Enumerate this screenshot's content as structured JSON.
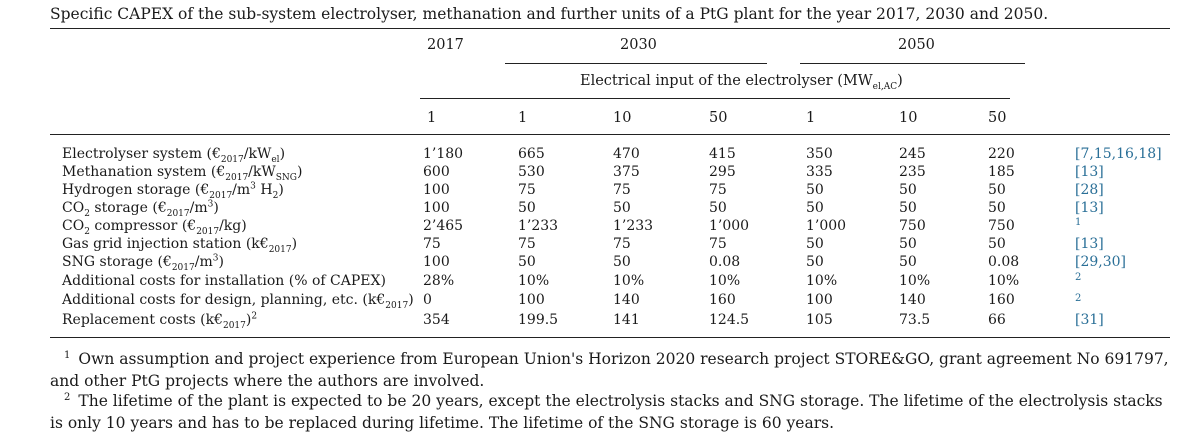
{
  "caption": "Specific CAPEX of the sub-system electrolyser, methanation and further units of a PtG plant for the year 2017, 2030 and 2050.",
  "header": {
    "years": [
      "2017",
      "2030",
      "2050"
    ],
    "span_label_pre": "Electrical input of the electrolyser (MW",
    "span_label_sub": "el,AC",
    "span_label_post": ")",
    "sizes": [
      "1",
      "1",
      "10",
      "50",
      "1",
      "10",
      "50"
    ]
  },
  "rows": [
    {
      "label_pre": "Electrolyser system (€",
      "label_sub": "2017",
      "label_mid": "/kW",
      "label_sub2": "el",
      "label_post": ")",
      "values": [
        "1’180",
        "665",
        "470",
        "415",
        "350",
        "245",
        "220"
      ],
      "ref": "[7,15,16,18]"
    },
    {
      "label_pre": "Methanation system (€",
      "label_sub": "2017",
      "label_mid": "/kW",
      "label_sub2": "SNG",
      "label_post": ")",
      "values": [
        "600",
        "530",
        "375",
        "295",
        "335",
        "235",
        "185"
      ],
      "ref": "[13]"
    },
    {
      "label_pre": "Hydrogen storage (€",
      "label_sub": "2017",
      "label_mid": "/m",
      "label_sup": "3",
      "label_post": " H",
      "label_sub3": "2",
      "label_end": ")",
      "values": [
        "100",
        "75",
        "75",
        "75",
        "50",
        "50",
        "50"
      ],
      "ref": "[28]"
    },
    {
      "label_pre": "CO",
      "label_sub": "2",
      "label_mid": " storage (€",
      "label_sub2": "2017",
      "label_post": "/m",
      "label_sup": "3",
      "label_end": ")",
      "values": [
        "100",
        "50",
        "50",
        "50",
        "50",
        "50",
        "50"
      ],
      "ref": "[13]"
    },
    {
      "label_pre": "CO",
      "label_sub": "2",
      "label_mid": " compressor (€",
      "label_sub2": "2017",
      "label_post": "/kg)",
      "values": [
        "2’465",
        "1’233",
        "1’233",
        "1’000",
        "1’000",
        "750",
        "750"
      ],
      "ref_sup": "1"
    },
    {
      "label_pre": "Gas grid injection station (k€",
      "label_sub": "2017",
      "label_post": ")",
      "values": [
        "75",
        "75",
        "75",
        "75",
        "50",
        "50",
        "50"
      ],
      "ref": "[13]"
    },
    {
      "label_pre": "SNG storage (€",
      "label_sub": "2017",
      "label_mid": "/m",
      "label_sup": "3",
      "label_post": ")",
      "values": [
        "100",
        "50",
        "50",
        "0.08",
        "50",
        "50",
        "0.08"
      ],
      "ref": "[29,30]"
    },
    {
      "label_pre": "Additional costs for installation (% of CAPEX)",
      "values": [
        "28%",
        "10%",
        "10%",
        "10%",
        "10%",
        "10%",
        "10%"
      ],
      "ref_sup": "2"
    },
    {
      "label_pre": "Additional costs for design, planning, etc. (k€",
      "label_sub": "2017",
      "label_post": ")",
      "values": [
        "0",
        "100",
        "140",
        "160",
        "100",
        "140",
        "160"
      ],
      "ref_sup": "2"
    },
    {
      "label_pre": "Replacement costs (k€",
      "label_sub": "2017",
      "label_post": ")",
      "label_sup": "2",
      "values": [
        "354",
        "199.5",
        "141",
        "124.5",
        "105",
        "73.5",
        "66"
      ],
      "ref": "[31]"
    }
  ],
  "footnotes": [
    {
      "mark": "1",
      "text": "Own assumption and project experience from European Union's Horizon 2020 research project STORE&GO, grant agreement No 691797, and other PtG projects where the authors are involved."
    },
    {
      "mark": "2",
      "text": "The lifetime of the plant is expected to be 20 years, except the electrolysis stacks and SNG storage. The lifetime of the electrolysis stacks is only 10 years and has to be replaced during lifetime. The lifetime of the SNG storage is 60 years."
    }
  ]
}
